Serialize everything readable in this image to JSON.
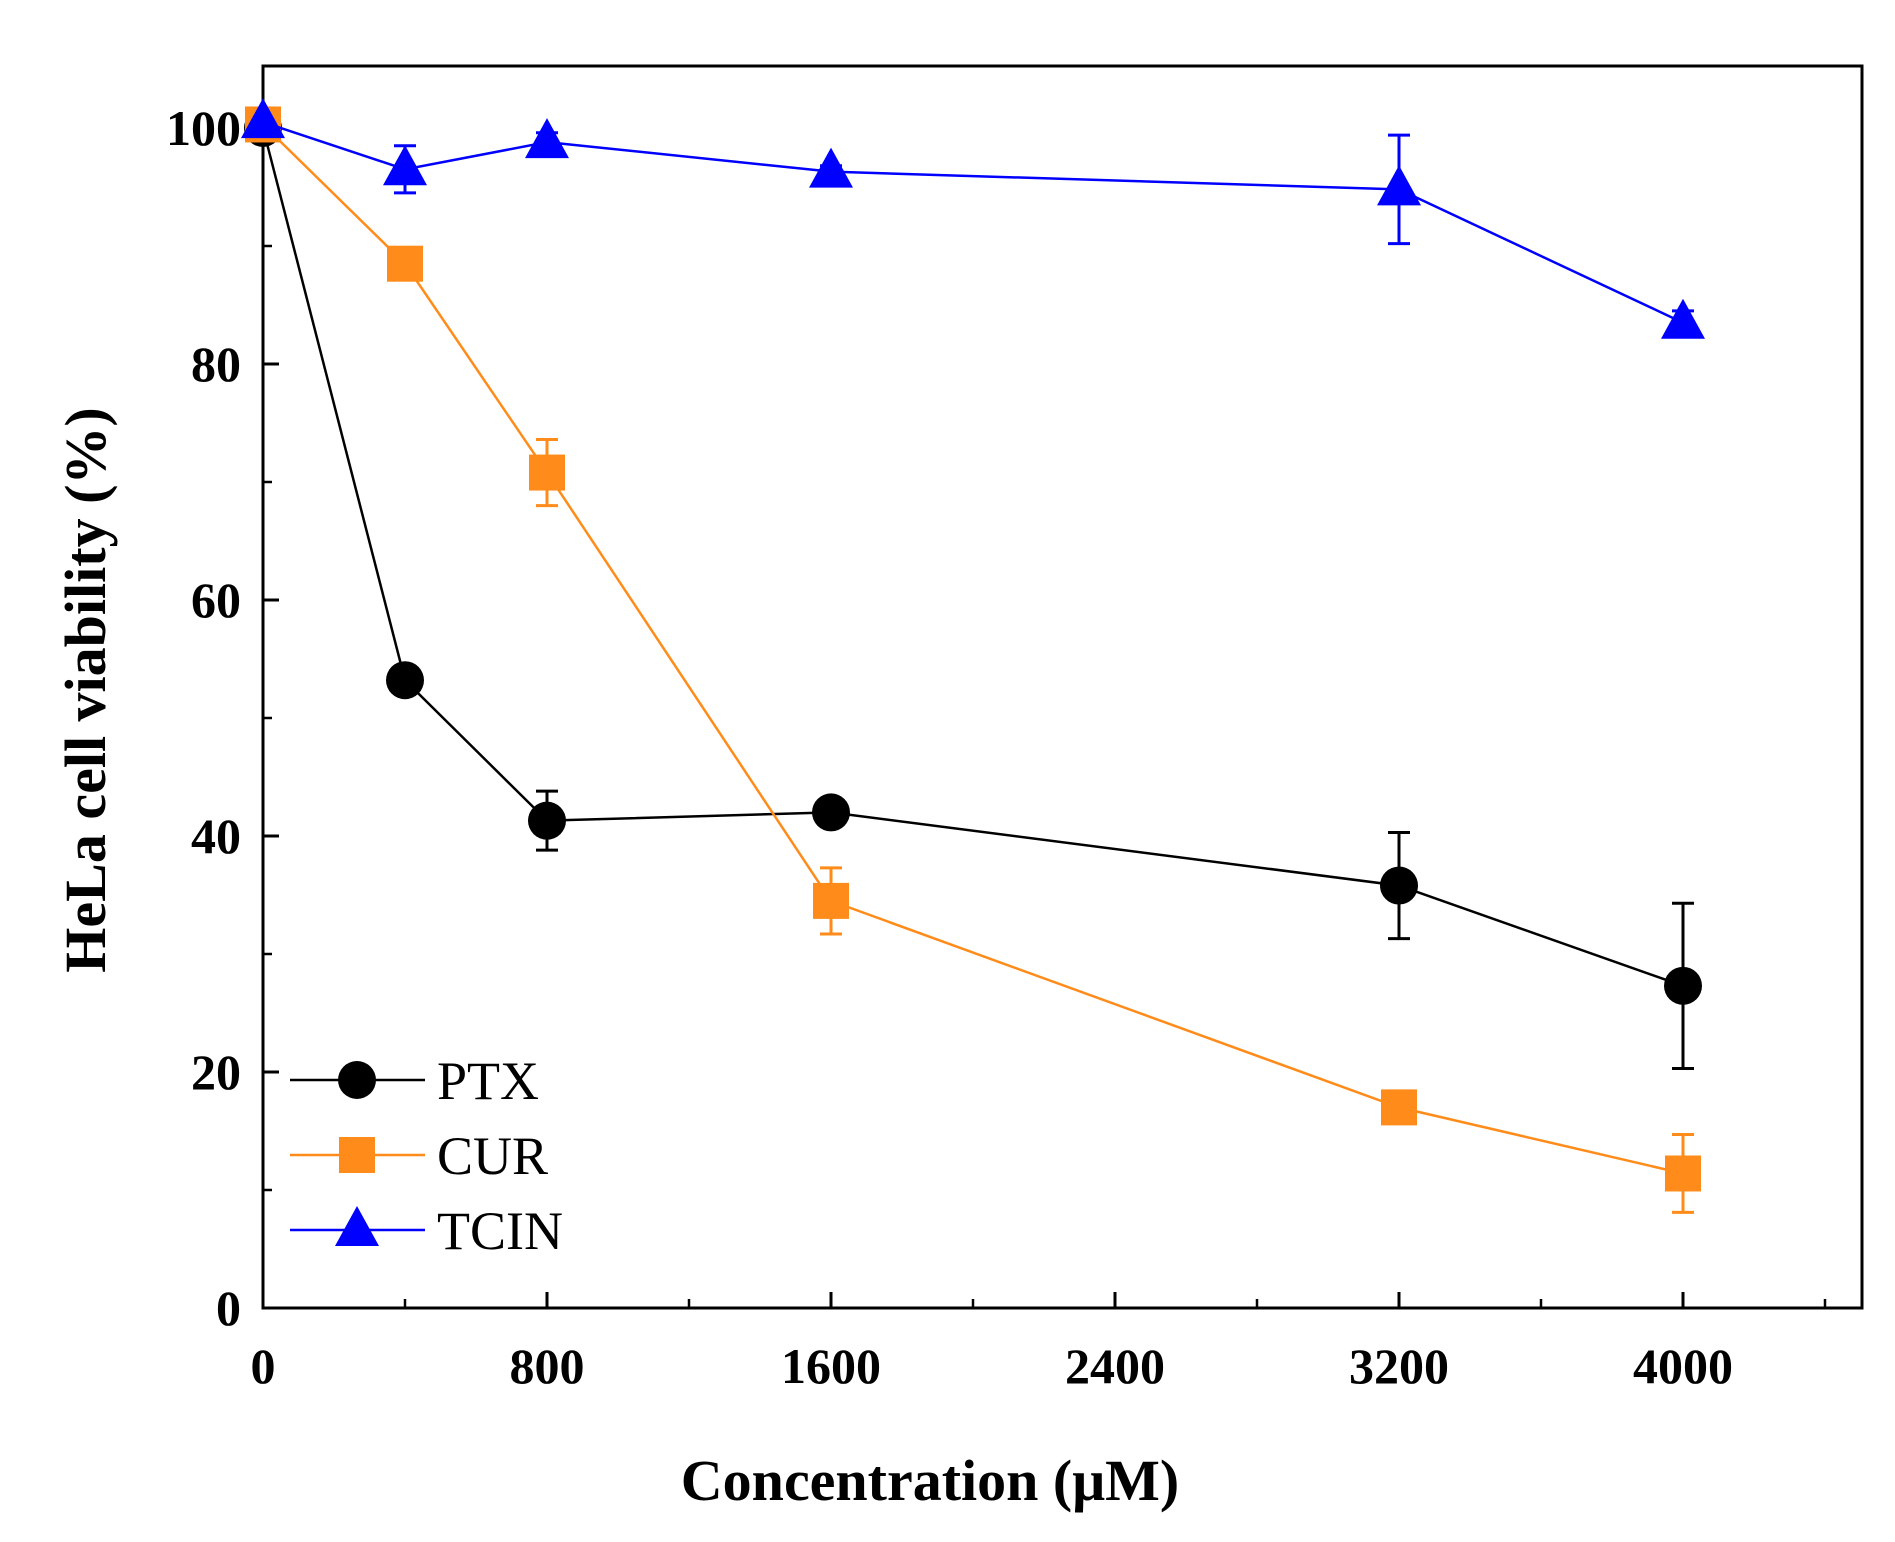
{
  "chart_data": {
    "type": "line",
    "title": "",
    "xlabel": "Concentration (μM)",
    "ylabel": "HeLa cell viability (%)",
    "xlim": [
      0,
      4600
    ],
    "ylim": [
      0,
      105
    ],
    "x_ticks": [
      0,
      800,
      1600,
      2400,
      3200,
      4000
    ],
    "x_tick_labels": [
      "0",
      "800",
      "1600",
      "2400",
      "3200",
      "4000"
    ],
    "y_ticks": [
      0,
      20,
      40,
      60,
      80,
      100
    ],
    "y_tick_labels": [
      "0",
      "20",
      "40",
      "60",
      "80",
      "100"
    ],
    "grid": false,
    "legend_position": "bottom-left",
    "series": [
      {
        "name": "PTX",
        "color": "#000000",
        "marker": "circle",
        "x": [
          0,
          400,
          800,
          1600,
          3200,
          4000
        ],
        "y": [
          100,
          53.2,
          41.3,
          42,
          35.8,
          27.3
        ],
        "err": [
          0,
          0.8,
          2.5,
          0.5,
          4.5,
          7
        ]
      },
      {
        "name": "CUR",
        "color": "#ff8c1a",
        "marker": "square",
        "x": [
          0,
          400,
          800,
          1600,
          3200,
          4000
        ],
        "y": [
          100.3,
          88.5,
          70.8,
          34.5,
          17,
          11.4
        ],
        "err": [
          0,
          0.8,
          2.8,
          2.8,
          0.5,
          3.3
        ]
      },
      {
        "name": "TCIN",
        "color": "#0000ff",
        "marker": "triangle",
        "x": [
          0,
          400,
          800,
          1600,
          3200,
          4000
        ],
        "y": [
          100.5,
          96.5,
          98.8,
          96.3,
          94.8,
          83.5
        ],
        "err": [
          0,
          2,
          0.8,
          0.5,
          4.6,
          1
        ]
      }
    ]
  }
}
